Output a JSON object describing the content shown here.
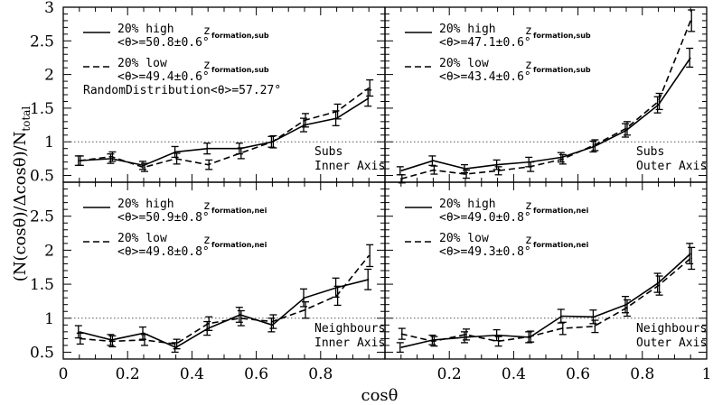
{
  "chart_data": [
    {
      "type": "line",
      "panel": "top-left",
      "xlim": [
        0,
        1
      ],
      "ylim": [
        0.4,
        3
      ],
      "xticks": [],
      "yticks": [
        "0.5",
        "1",
        "1.5",
        "2",
        "2.5",
        "3"
      ],
      "annotation": [
        "Subs",
        "Inner Axis"
      ],
      "random_note": "RandomDistribution<θ>=57.27°",
      "x": [
        0.05,
        0.15,
        0.25,
        0.35,
        0.45,
        0.55,
        0.65,
        0.75,
        0.85,
        0.95
      ],
      "series": [
        {
          "name": [
            "20% high",
            "<θ>=50.8±0.6°"
          ],
          "z_main": "z",
          "z_sub": "formation,sub",
          "style": "solid",
          "values": [
            0.72,
            0.75,
            0.65,
            0.85,
            0.9,
            0.9,
            1.0,
            1.25,
            1.35,
            1.65
          ],
          "errors": [
            0.07,
            0.07,
            0.06,
            0.08,
            0.08,
            0.08,
            0.08,
            0.1,
            0.11,
            0.12
          ]
        },
        {
          "name": [
            "20% low",
            "<θ>=49.4±0.6°"
          ],
          "z_main": "z",
          "z_sub": "formation,sub",
          "style": "dashed",
          "values": [
            0.72,
            0.78,
            0.62,
            0.75,
            0.66,
            0.83,
            1.0,
            1.32,
            1.45,
            1.8
          ],
          "errors": [
            0.07,
            0.07,
            0.06,
            0.08,
            0.07,
            0.08,
            0.09,
            0.1,
            0.11,
            0.12
          ]
        }
      ]
    },
    {
      "type": "line",
      "panel": "top-right",
      "xlim": [
        0,
        1
      ],
      "ylim": [
        0.4,
        3
      ],
      "xticks": [],
      "yticks": [],
      "annotation": [
        "Subs",
        "Outer Axis"
      ],
      "x": [
        0.05,
        0.15,
        0.25,
        0.35,
        0.45,
        0.55,
        0.65,
        0.75,
        0.85,
        0.95
      ],
      "series": [
        {
          "name": [
            "20% high",
            "<θ>=47.1±0.6°"
          ],
          "z_main": "z",
          "z_sub": "formation,sub",
          "style": "solid",
          "values": [
            0.57,
            0.72,
            0.6,
            0.66,
            0.7,
            0.77,
            0.93,
            1.17,
            1.55,
            2.25
          ],
          "errors": [
            0.06,
            0.07,
            0.06,
            0.07,
            0.07,
            0.07,
            0.08,
            0.1,
            0.12,
            0.14
          ]
        },
        {
          "name": [
            "20% low",
            "<θ>=43.4±0.6°"
          ],
          "z_main": "z",
          "z_sub": "formation,sub",
          "style": "dashed",
          "values": [
            0.45,
            0.58,
            0.52,
            0.57,
            0.63,
            0.74,
            0.95,
            1.2,
            1.6,
            2.8
          ],
          "errors": [
            0.06,
            0.06,
            0.06,
            0.06,
            0.07,
            0.07,
            0.08,
            0.1,
            0.12,
            0.16
          ]
        }
      ]
    },
    {
      "type": "line",
      "panel": "bottom-left",
      "xlim": [
        0,
        1
      ],
      "ylim": [
        0.4,
        3
      ],
      "xticks": [
        "0",
        "0.2",
        "0.4",
        "0.6",
        "0.8"
      ],
      "yticks": [
        "0.5",
        "1",
        "1.5",
        "2",
        "2.5"
      ],
      "annotation": [
        "Neighbours",
        "Inner Axis"
      ],
      "x": [
        0.05,
        0.15,
        0.25,
        0.35,
        0.45,
        0.55,
        0.65,
        0.75,
        0.85,
        0.95
      ],
      "series": [
        {
          "name": [
            "20% high",
            "<θ>=50.9±0.8°"
          ],
          "z_main": "z",
          "z_sub": "formation,nei",
          "style": "solid",
          "values": [
            0.8,
            0.68,
            0.78,
            0.57,
            0.85,
            1.05,
            0.9,
            1.3,
            1.45,
            1.57
          ],
          "errors": [
            0.09,
            0.08,
            0.09,
            0.07,
            0.1,
            0.11,
            0.1,
            0.13,
            0.14,
            0.15
          ]
        },
        {
          "name": [
            "20% low",
            "<θ>=49.8±0.8°"
          ],
          "z_main": "z",
          "z_sub": "formation,nei",
          "style": "dashed",
          "values": [
            0.7,
            0.66,
            0.68,
            0.62,
            0.92,
            1.0,
            0.95,
            1.12,
            1.33,
            1.92
          ],
          "errors": [
            0.08,
            0.08,
            0.08,
            0.07,
            0.1,
            0.11,
            0.1,
            0.12,
            0.14,
            0.16
          ]
        }
      ]
    },
    {
      "type": "line",
      "panel": "bottom-right",
      "xlim": [
        0,
        1
      ],
      "ylim": [
        0.4,
        3
      ],
      "xticks": [
        "",
        "0.2",
        "0.4",
        "0.6",
        "0.8",
        "1"
      ],
      "yticks": [],
      "annotation": [
        "Neighbours",
        "Outer Axis"
      ],
      "x": [
        0.05,
        0.15,
        0.25,
        0.35,
        0.45,
        0.55,
        0.65,
        0.75,
        0.85,
        0.95
      ],
      "series": [
        {
          "name": [
            "20% high",
            "<θ>=49.0±0.8°"
          ],
          "z_main": "z",
          "z_sub": "formation,nei",
          "style": "solid",
          "values": [
            0.57,
            0.68,
            0.72,
            0.75,
            0.72,
            1.03,
            1.02,
            1.2,
            1.52,
            1.95
          ],
          "errors": [
            0.07,
            0.07,
            0.08,
            0.08,
            0.08,
            0.1,
            0.1,
            0.12,
            0.14,
            0.15
          ]
        },
        {
          "name": [
            "20% low",
            "<θ>=49.3±0.8°"
          ],
          "z_main": "z",
          "z_sub": "formation,nei",
          "style": "dashed",
          "values": [
            0.77,
            0.66,
            0.76,
            0.66,
            0.73,
            0.85,
            0.88,
            1.15,
            1.48,
            1.88
          ],
          "errors": [
            0.08,
            0.07,
            0.08,
            0.07,
            0.08,
            0.09,
            0.09,
            0.12,
            0.14,
            0.16
          ]
        }
      ]
    }
  ],
  "xlabel": "cosθ",
  "ylabel_main": "(N(cosθ)/Δcosθ)/N",
  "ylabel_sub": "total",
  "reference_line": 1
}
